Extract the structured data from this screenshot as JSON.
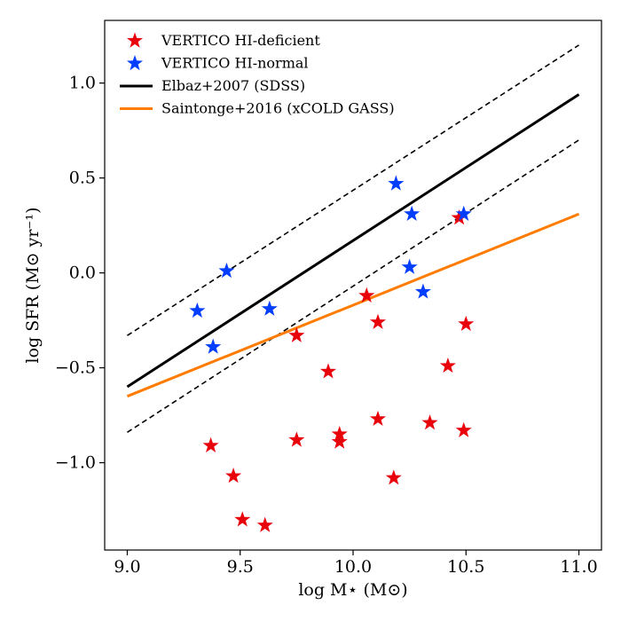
{
  "chart_data": {
    "type": "scatter",
    "xlabel": "log M⋆ (M⊙)",
    "ylabel": "log SFR (M⊙ yr⁻¹)",
    "xlim": [
      8.9,
      11.1
    ],
    "ylim": [
      -1.46,
      1.33
    ],
    "xticks": [
      9.0,
      9.5,
      10.0,
      10.5,
      11.0
    ],
    "yticks": [
      -1.0,
      -0.5,
      0.0,
      0.5,
      1.0
    ],
    "xtick_labels": [
      "9.0",
      "9.5",
      "10.0",
      "10.5",
      "11.0"
    ],
    "ytick_labels": [
      "−1.0",
      "−0.5",
      "0.0",
      "0.5",
      "1.0"
    ],
    "legend_position": "upper-left",
    "series": [
      {
        "name": "VERTICO HI-deficient",
        "kind": "scatter",
        "marker": "star",
        "color": "#e8000b",
        "points": [
          [
            9.37,
            -0.91
          ],
          [
            9.47,
            -1.07
          ],
          [
            9.51,
            -1.3
          ],
          [
            9.61,
            -1.33
          ],
          [
            9.75,
            -0.33
          ],
          [
            9.75,
            -0.88
          ],
          [
            9.89,
            -0.52
          ],
          [
            9.94,
            -0.85
          ],
          [
            9.94,
            -0.89
          ],
          [
            10.06,
            -0.12
          ],
          [
            10.11,
            -0.26
          ],
          [
            10.11,
            -0.77
          ],
          [
            10.18,
            -1.08
          ],
          [
            10.34,
            -0.79
          ],
          [
            10.42,
            -0.49
          ],
          [
            10.47,
            0.29
          ],
          [
            10.49,
            -0.83
          ],
          [
            10.5,
            -0.27
          ]
        ]
      },
      {
        "name": "VERTICO HI-normal",
        "kind": "scatter",
        "marker": "star",
        "color": "#023eff",
        "points": [
          [
            9.31,
            -0.2
          ],
          [
            9.38,
            -0.39
          ],
          [
            9.44,
            0.01
          ],
          [
            9.63,
            -0.19
          ],
          [
            10.19,
            0.47
          ],
          [
            10.25,
            0.03
          ],
          [
            10.26,
            0.31
          ],
          [
            10.31,
            -0.1
          ],
          [
            10.49,
            0.31
          ]
        ]
      },
      {
        "name": "Elbaz+2007 (SDSS)",
        "kind": "line",
        "style": "solid",
        "color": "#000000",
        "points": [
          [
            9.0,
            -0.6
          ],
          [
            11.0,
            0.94
          ]
        ]
      },
      {
        "name": "Elbaz+2007 upper",
        "kind": "line",
        "style": "dashed",
        "color": "#000000",
        "legend": false,
        "points": [
          [
            9.0,
            -0.33
          ],
          [
            11.0,
            1.2
          ]
        ]
      },
      {
        "name": "Elbaz+2007 lower",
        "kind": "line",
        "style": "dashed",
        "color": "#000000",
        "legend": false,
        "points": [
          [
            9.0,
            -0.84
          ],
          [
            11.0,
            0.7
          ]
        ]
      },
      {
        "name": "Saintonge+2016 (xCOLD GASS)",
        "kind": "line",
        "style": "solid",
        "color": "#ff7c00",
        "points": [
          [
            9.0,
            -0.65
          ],
          [
            11.0,
            0.31
          ]
        ]
      }
    ],
    "legend": [
      {
        "label": "VERTICO HI-deficient",
        "marker": "star",
        "color": "#e8000b"
      },
      {
        "label": "VERTICO HI-normal",
        "marker": "star",
        "color": "#023eff"
      },
      {
        "label": "Elbaz+2007 (SDSS)",
        "marker": "line",
        "color": "#000000"
      },
      {
        "label": "Saintonge+2016 (xCOLD GASS)",
        "marker": "line",
        "color": "#ff7c00"
      }
    ]
  }
}
